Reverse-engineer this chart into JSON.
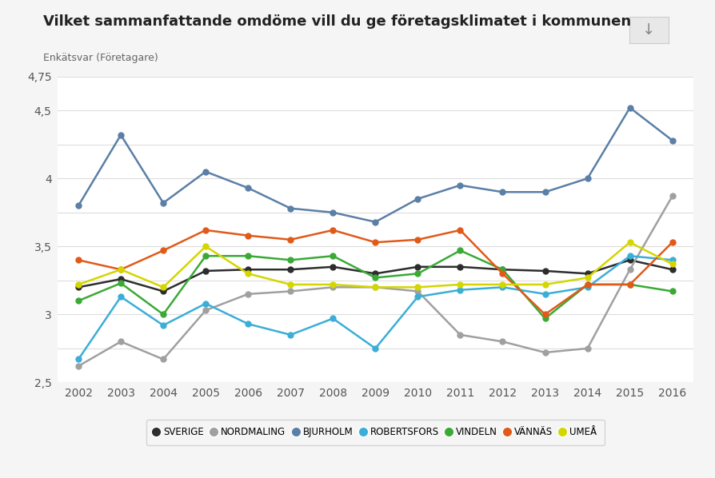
{
  "title": "Vilket sammanfattande omdöme vill du ge företagsklimatet i kommunen",
  "subtitle": "Enkätsvar (Företagare)",
  "years": [
    2002,
    2003,
    2004,
    2005,
    2006,
    2007,
    2008,
    2009,
    2010,
    2011,
    2012,
    2013,
    2014,
    2015,
    2016
  ],
  "series_order": [
    "SVERIGE",
    "NORDMALING",
    "BJURHOLM",
    "ROBERTSFORS",
    "VINDELN",
    "VÄNNÄS",
    "UMEÅ"
  ],
  "series": {
    "SVERIGE": {
      "color": "#2d2d2d",
      "values": [
        3.2,
        3.26,
        3.17,
        3.32,
        3.33,
        3.33,
        3.35,
        3.3,
        3.35,
        3.35,
        3.33,
        3.32,
        3.3,
        3.4,
        3.33
      ]
    },
    "NORDMALING": {
      "color": "#a0a0a0",
      "values": [
        2.62,
        2.8,
        2.67,
        3.03,
        3.15,
        3.17,
        3.2,
        3.2,
        3.17,
        2.85,
        2.8,
        2.72,
        2.75,
        3.33,
        3.87
      ]
    },
    "BJURHOLM": {
      "color": "#5b7fa6",
      "values": [
        3.8,
        4.32,
        3.82,
        4.05,
        3.93,
        3.78,
        3.75,
        3.68,
        3.85,
        3.95,
        3.9,
        3.9,
        4.0,
        4.52,
        4.28
      ]
    },
    "ROBERTSFORS": {
      "color": "#3baed8",
      "values": [
        2.67,
        3.13,
        2.92,
        3.08,
        2.93,
        2.85,
        2.97,
        2.75,
        3.13,
        3.18,
        3.2,
        3.15,
        3.2,
        3.43,
        3.4
      ]
    },
    "VINDELN": {
      "color": "#3aaa35",
      "values": [
        3.1,
        3.23,
        3.0,
        3.43,
        3.43,
        3.4,
        3.43,
        3.27,
        3.3,
        3.47,
        3.33,
        2.97,
        3.22,
        3.22,
        3.17
      ]
    },
    "VÄNNÄS": {
      "color": "#e05a1a",
      "values": [
        3.4,
        3.33,
        3.47,
        3.62,
        3.58,
        3.55,
        3.62,
        3.53,
        3.55,
        3.62,
        3.3,
        3.0,
        3.22,
        3.22,
        3.53
      ]
    },
    "UMEÅ": {
      "color": "#d4d600",
      "values": [
        3.22,
        3.33,
        3.2,
        3.5,
        3.3,
        3.22,
        3.22,
        3.2,
        3.2,
        3.22,
        3.22,
        3.22,
        3.27,
        3.53,
        3.37
      ]
    }
  },
  "ylim": [
    2.5,
    4.75
  ],
  "yticks": [
    2.5,
    2.75,
    3.0,
    3.25,
    3.5,
    3.75,
    4.0,
    4.25,
    4.5,
    4.75
  ],
  "ytick_labels": [
    "2,5",
    "",
    "3",
    "",
    "3,5",
    "",
    "4",
    "",
    "4,5",
    "4,75"
  ],
  "background_color": "#f5f5f5",
  "plot_bg_color": "#ffffff",
  "grid_color": "#dddddd"
}
